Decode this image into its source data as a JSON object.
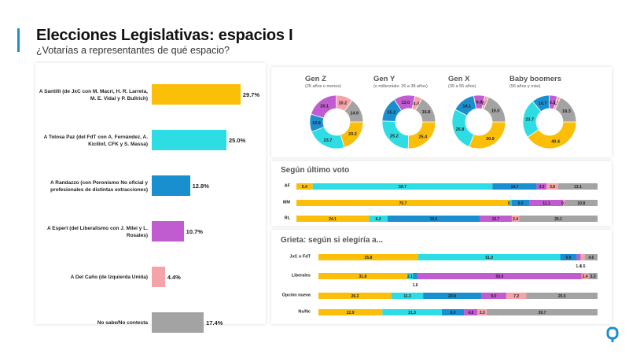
{
  "header": {
    "title": "Elecciones Legislativas: espacios I",
    "subtitle": "¿Votarías a representantes de qué espacio?"
  },
  "colors": {
    "santilli": "#FBBF0A",
    "tolosa": "#2EDDE3",
    "randazzo": "#1A8FD0",
    "espert": "#C05CD0",
    "delcano": "#F4A3A8",
    "nsnc": "#A3A3A3",
    "accent": "#1A8FD0"
  },
  "chart_data": [
    {
      "type": "bar",
      "orientation": "horizontal",
      "categories": [
        "A Santilli (de JxC con M. Macri, H. R. Larreta, M. E. Vidal y P. Bullrich)",
        "A Tolosa Paz (del FdT con A. Fernández, A. Kicillof, CFK y S. Massa)",
        "A Randazzo (con Peronismo No oficial y profesionales de distintas extracciones)",
        "A Espert (del Liberalismo con J. Milei y L. Rosales)",
        "A Del Caño (de Izquierda Unida)",
        "No sabe/No contesta"
      ],
      "values": [
        29.7,
        25.0,
        12.8,
        10.7,
        4.4,
        17.4
      ],
      "value_labels": [
        "29.7%",
        "25.0%",
        "12.8%",
        "10.7%",
        "4.4%",
        "17.4%"
      ]
    },
    {
      "type": "pie",
      "subtype": "donut",
      "title": "Gen Z",
      "subtitle": "(25 años o menos)",
      "values": [
        20.2,
        23.7,
        10.8,
        20.1,
        10.2,
        14.9
      ]
    },
    {
      "type": "pie",
      "subtype": "donut",
      "title": "Gen Y",
      "subtitle": "(o millennials: 26 a 38 años)",
      "values": [
        25.4,
        25.2,
        15.2,
        13.0,
        4.4,
        16.8
      ]
    },
    {
      "type": "pie",
      "subtype": "donut",
      "title": "Gen X",
      "subtitle": "(39 a 55 años)",
      "values": [
        30.9,
        26.8,
        14.1,
        6.8,
        2.3,
        19.0
      ]
    },
    {
      "type": "pie",
      "subtype": "donut",
      "title": "Baby boomers",
      "subtitle": "(56 años y más)",
      "values": [
        40.4,
        23.7,
        10.7,
        5.1,
        1.9,
        18.3
      ]
    },
    {
      "type": "bar",
      "stacked": true,
      "orientation": "horizontal",
      "title": "Según último voto",
      "categories": [
        "AF",
        "MM",
        "RL"
      ],
      "rows": [
        [
          5.4,
          59.7,
          14.7,
          3.3,
          3.8,
          13.1
        ],
        [
          70.7,
          0.7,
          6.0,
          11.1,
          0.6,
          10.8
        ],
        [
          24.1,
          6.2,
          30.6,
          10.7,
          2.4,
          26.1
        ]
      ]
    },
    {
      "type": "bar",
      "stacked": true,
      "orientation": "horizontal",
      "title": "Grieta: según si elegiría a...",
      "categories": [
        "JxC o FdT",
        "Liberales",
        "Opción nueva",
        "Ns/Nc"
      ],
      "rows": [
        [
          35.8,
          51.0,
          5.9,
          1.4,
          1.5,
          4.6
        ],
        [
          31.8,
          2.1,
          1.6,
          58.9,
          2.4,
          3.3
        ],
        [
          26.2,
          11.3,
          20.8,
          9.0,
          7.2,
          25.5
        ],
        [
          22.9,
          21.3,
          8.0,
          4.8,
          3.3,
          39.7
        ]
      ]
    }
  ]
}
